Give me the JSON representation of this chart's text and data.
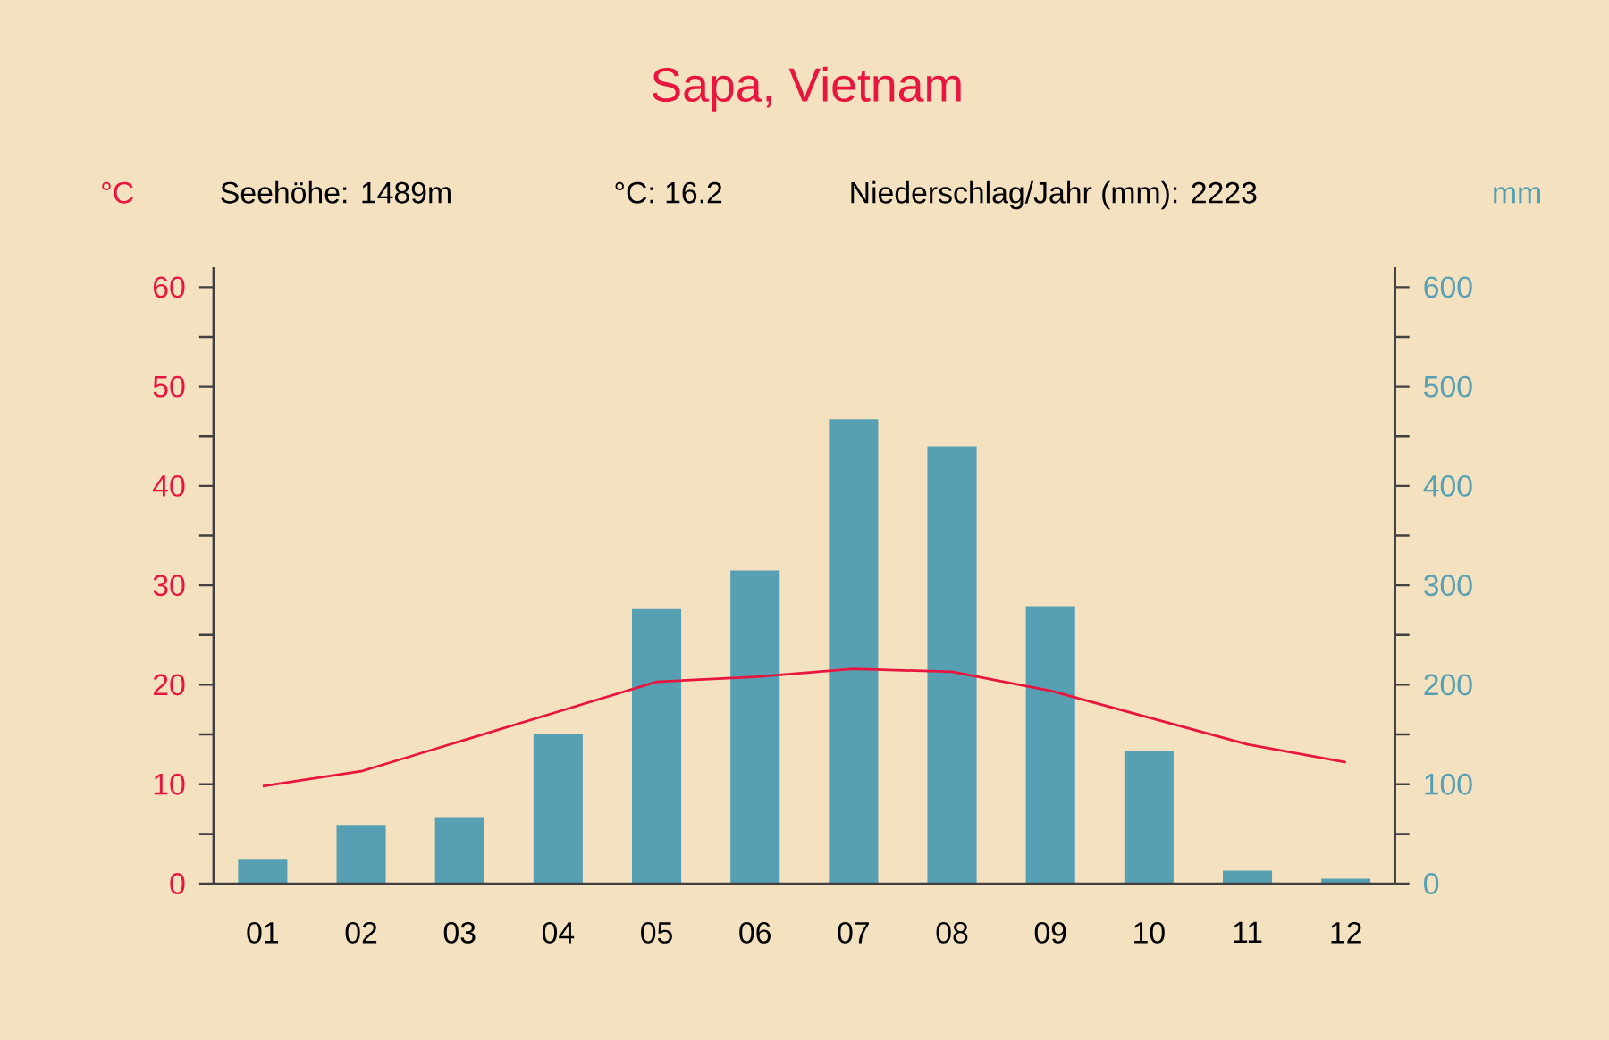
{
  "chart_data": {
    "type": "bar",
    "title": "Sapa, Vietnam",
    "ylabel": "°C",
    "y2label": "mm",
    "annotations": [
      "Seehöhe: 1489m",
      "°C: 16.2",
      "Niederschlag/Jahr (mm): 2223"
    ],
    "categories": [
      "01",
      "02",
      "03",
      "04",
      "05",
      "06",
      "07",
      "08",
      "09",
      "10",
      "11",
      "12"
    ],
    "series": [
      {
        "axis": "y2",
        "color": "#579fb3",
        "values": [
          25,
          59,
          67,
          151,
          276,
          315,
          467,
          440,
          279,
          133,
          13,
          5
        ]
      },
      {
        "type": "line",
        "color": "#e8163f",
        "values": [
          9.8,
          11.3,
          14.3,
          17.3,
          20.3,
          20.8,
          21.6,
          21.3,
          19.4,
          16.7,
          14.0,
          12.2
        ]
      }
    ],
    "ylim": [
      0,
      62
    ],
    "yticks": [
      0,
      10,
      20,
      30,
      40,
      50,
      60
    ],
    "y2lim": [
      0,
      620
    ],
    "y2ticks": [
      0,
      100,
      200,
      300,
      400,
      500,
      600
    ],
    "grid": false
  }
}
